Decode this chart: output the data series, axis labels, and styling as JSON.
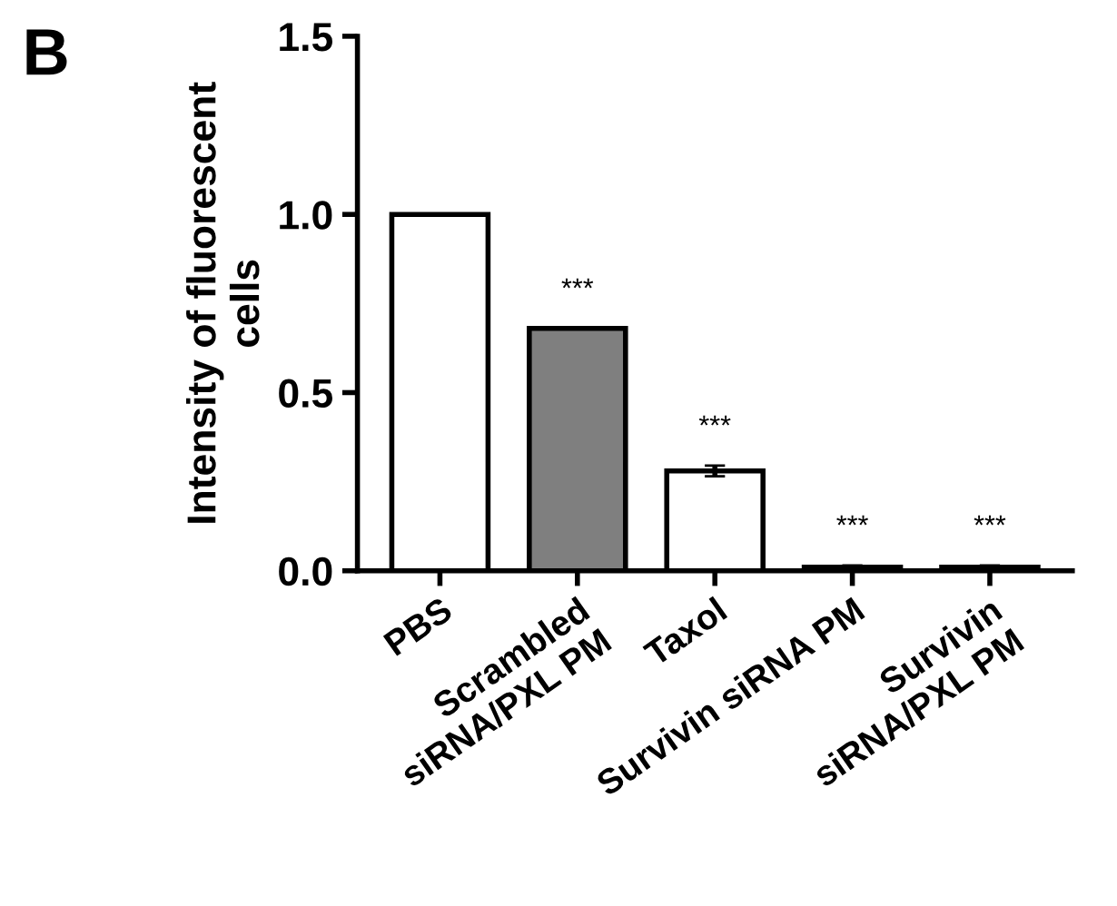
{
  "chart_data": {
    "type": "bar",
    "ylabel": "Intensity of fluorescent\ncells",
    "categories": [
      "PBS",
      "Scrambled\nsiRNA/PXL PM",
      "Taxol",
      "Survivin siRNA PM",
      "Survivin\nsiRNA/PXL PM"
    ],
    "values": [
      1.0,
      0.68,
      0.28,
      0.01,
      0.01
    ],
    "errors": [
      null,
      null,
      0.015,
      0.005,
      0.005
    ],
    "colors": [
      "#ffffff",
      "#7f7f7f",
      "#ffffff",
      "#ffffff",
      "#ffffff"
    ],
    "value_labels": [
      null,
      "***",
      "***",
      "***",
      "***"
    ],
    "annotations": [
      "B"
    ],
    "ylim": [
      0,
      1.5
    ],
    "yticks": [
      {
        "value": 0,
        "label": "0.0"
      },
      0.5,
      {
        "value": 1,
        "label": "1.0"
      },
      1.5
    ],
    "grid": false
  }
}
